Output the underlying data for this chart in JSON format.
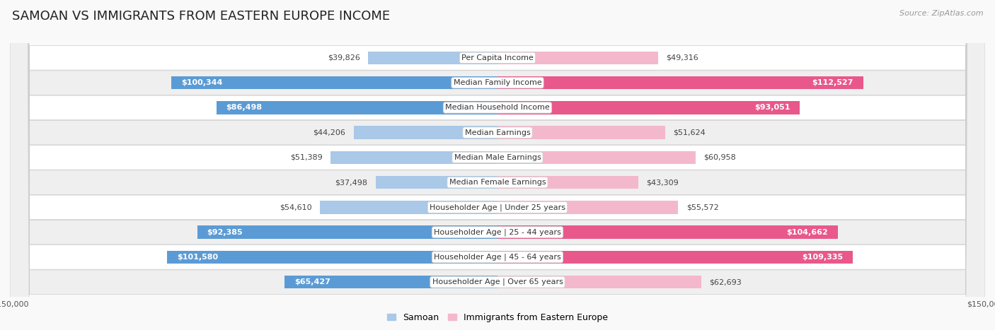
{
  "title": "SAMOAN VS IMMIGRANTS FROM EASTERN EUROPE INCOME",
  "source": "Source: ZipAtlas.com",
  "categories": [
    "Per Capita Income",
    "Median Family Income",
    "Median Household Income",
    "Median Earnings",
    "Median Male Earnings",
    "Median Female Earnings",
    "Householder Age | Under 25 years",
    "Householder Age | 25 - 44 years",
    "Householder Age | 45 - 64 years",
    "Householder Age | Over 65 years"
  ],
  "samoan_values": [
    39826,
    100344,
    86498,
    44206,
    51389,
    37498,
    54610,
    92385,
    101580,
    65427
  ],
  "eastern_europe_values": [
    49316,
    112527,
    93051,
    51624,
    60958,
    43309,
    55572,
    104662,
    109335,
    62693
  ],
  "samoan_labels": [
    "$39,826",
    "$100,344",
    "$86,498",
    "$44,206",
    "$51,389",
    "$37,498",
    "$54,610",
    "$92,385",
    "$101,580",
    "$65,427"
  ],
  "eastern_europe_labels": [
    "$49,316",
    "$112,527",
    "$93,051",
    "$51,624",
    "$60,958",
    "$43,309",
    "$55,572",
    "$104,662",
    "$109,335",
    "$62,693"
  ],
  "samoan_color_light": "#aac8e8",
  "samoan_color_dark": "#5b9bd5",
  "eastern_europe_color_light": "#f4b8cc",
  "eastern_europe_color_dark": "#e8588a",
  "max_value": 150000,
  "bar_height": 0.52,
  "title_fontsize": 13,
  "label_fontsize": 8,
  "category_fontsize": 8,
  "legend_fontsize": 9,
  "axis_label_fontsize": 8,
  "inside_label_threshold": 65000
}
